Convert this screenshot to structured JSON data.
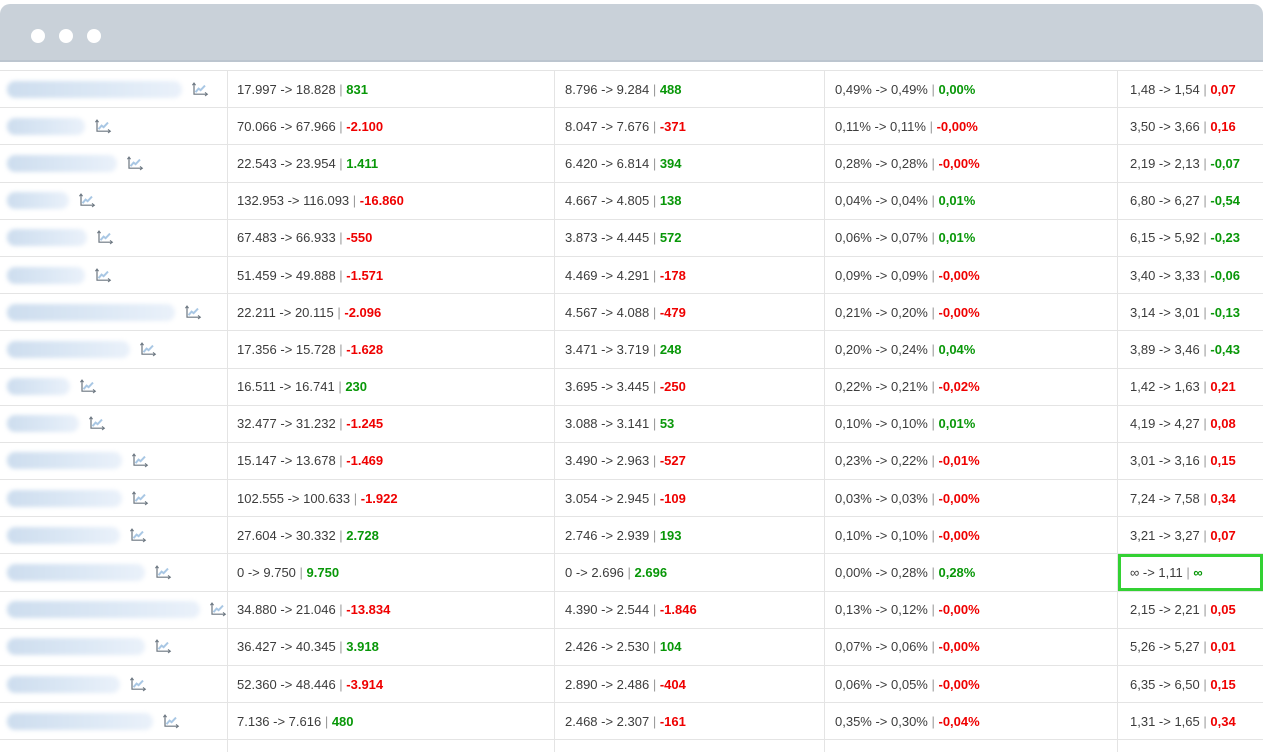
{
  "window": {
    "dots": [
      "window-dot-1",
      "window-dot-2",
      "window-dot-3"
    ]
  },
  "colors": {
    "positive": "#089708",
    "negative": "#ef0000",
    "selection": "#33d133",
    "titlebar": "#c9d1d9",
    "titlebar_edge": "#bcc5cf"
  },
  "icons": {
    "row_icon": "line-chart"
  },
  "table": {
    "arrow": "->",
    "separator": "|",
    "rows": [
      {
        "blur_width": 175,
        "cells": [
          {
            "from": "17.997",
            "to": "18.828",
            "delta": "831",
            "trend": "positive"
          },
          {
            "from": "8.796",
            "to": "9.284",
            "delta": "488",
            "trend": "positive"
          },
          {
            "from": "0,49%",
            "to": "0,49%",
            "delta": "0,00%",
            "trend": "positive"
          },
          {
            "from": "1,48",
            "to": "1,54",
            "delta": "0,07",
            "trend": "negative"
          }
        ]
      },
      {
        "blur_width": 78,
        "cells": [
          {
            "from": "70.066",
            "to": "67.966",
            "delta": "-2.100",
            "trend": "negative"
          },
          {
            "from": "8.047",
            "to": "7.676",
            "delta": "-371",
            "trend": "negative"
          },
          {
            "from": "0,11%",
            "to": "0,11%",
            "delta": "-0,00%",
            "trend": "negative"
          },
          {
            "from": "3,50",
            "to": "3,66",
            "delta": "0,16",
            "trend": "negative"
          }
        ]
      },
      {
        "blur_width": 110,
        "cells": [
          {
            "from": "22.543",
            "to": "23.954",
            "delta": "1.411",
            "trend": "positive"
          },
          {
            "from": "6.420",
            "to": "6.814",
            "delta": "394",
            "trend": "positive"
          },
          {
            "from": "0,28%",
            "to": "0,28%",
            "delta": "-0,00%",
            "trend": "negative"
          },
          {
            "from": "2,19",
            "to": "2,13",
            "delta": "-0,07",
            "trend": "positive"
          }
        ]
      },
      {
        "blur_width": 62,
        "cells": [
          {
            "from": "132.953",
            "to": "116.093",
            "delta": "-16.860",
            "trend": "negative"
          },
          {
            "from": "4.667",
            "to": "4.805",
            "delta": "138",
            "trend": "positive"
          },
          {
            "from": "0,04%",
            "to": "0,04%",
            "delta": "0,01%",
            "trend": "positive"
          },
          {
            "from": "6,80",
            "to": "6,27",
            "delta": "-0,54",
            "trend": "positive"
          }
        ]
      },
      {
        "blur_width": 80,
        "cells": [
          {
            "from": "67.483",
            "to": "66.933",
            "delta": "-550",
            "trend": "negative"
          },
          {
            "from": "3.873",
            "to": "4.445",
            "delta": "572",
            "trend": "positive"
          },
          {
            "from": "0,06%",
            "to": "0,07%",
            "delta": "0,01%",
            "trend": "positive"
          },
          {
            "from": "6,15",
            "to": "5,92",
            "delta": "-0,23",
            "trend": "positive"
          }
        ]
      },
      {
        "blur_width": 78,
        "cells": [
          {
            "from": "51.459",
            "to": "49.888",
            "delta": "-1.571",
            "trend": "negative"
          },
          {
            "from": "4.469",
            "to": "4.291",
            "delta": "-178",
            "trend": "negative"
          },
          {
            "from": "0,09%",
            "to": "0,09%",
            "delta": "-0,00%",
            "trend": "negative"
          },
          {
            "from": "3,40",
            "to": "3,33",
            "delta": "-0,06",
            "trend": "positive"
          }
        ]
      },
      {
        "blur_width": 168,
        "cells": [
          {
            "from": "22.211",
            "to": "20.115",
            "delta": "-2.096",
            "trend": "negative"
          },
          {
            "from": "4.567",
            "to": "4.088",
            "delta": "-479",
            "trend": "negative"
          },
          {
            "from": "0,21%",
            "to": "0,20%",
            "delta": "-0,00%",
            "trend": "negative"
          },
          {
            "from": "3,14",
            "to": "3,01",
            "delta": "-0,13",
            "trend": "positive"
          }
        ]
      },
      {
        "blur_width": 123,
        "cells": [
          {
            "from": "17.356",
            "to": "15.728",
            "delta": "-1.628",
            "trend": "negative"
          },
          {
            "from": "3.471",
            "to": "3.719",
            "delta": "248",
            "trend": "positive"
          },
          {
            "from": "0,20%",
            "to": "0,24%",
            "delta": "0,04%",
            "trend": "positive"
          },
          {
            "from": "3,89",
            "to": "3,46",
            "delta": "-0,43",
            "trend": "positive"
          }
        ]
      },
      {
        "blur_width": 63,
        "cells": [
          {
            "from": "16.511",
            "to": "16.741",
            "delta": "230",
            "trend": "positive"
          },
          {
            "from": "3.695",
            "to": "3.445",
            "delta": "-250",
            "trend": "negative"
          },
          {
            "from": "0,22%",
            "to": "0,21%",
            "delta": "-0,02%",
            "trend": "negative"
          },
          {
            "from": "1,42",
            "to": "1,63",
            "delta": "0,21",
            "trend": "negative"
          }
        ]
      },
      {
        "blur_width": 72,
        "cells": [
          {
            "from": "32.477",
            "to": "31.232",
            "delta": "-1.245",
            "trend": "negative"
          },
          {
            "from": "3.088",
            "to": "3.141",
            "delta": "53",
            "trend": "positive"
          },
          {
            "from": "0,10%",
            "to": "0,10%",
            "delta": "0,01%",
            "trend": "positive"
          },
          {
            "from": "4,19",
            "to": "4,27",
            "delta": "0,08",
            "trend": "negative"
          }
        ]
      },
      {
        "blur_width": 115,
        "cells": [
          {
            "from": "15.147",
            "to": "13.678",
            "delta": "-1.469",
            "trend": "negative"
          },
          {
            "from": "3.490",
            "to": "2.963",
            "delta": "-527",
            "trend": "negative"
          },
          {
            "from": "0,23%",
            "to": "0,22%",
            "delta": "-0,01%",
            "trend": "negative"
          },
          {
            "from": "3,01",
            "to": "3,16",
            "delta": "0,15",
            "trend": "negative"
          }
        ]
      },
      {
        "blur_width": 115,
        "cells": [
          {
            "from": "102.555",
            "to": "100.633",
            "delta": "-1.922",
            "trend": "negative"
          },
          {
            "from": "3.054",
            "to": "2.945",
            "delta": "-109",
            "trend": "negative"
          },
          {
            "from": "0,03%",
            "to": "0,03%",
            "delta": "-0,00%",
            "trend": "negative"
          },
          {
            "from": "7,24",
            "to": "7,58",
            "delta": "0,34",
            "trend": "negative"
          }
        ]
      },
      {
        "blur_width": 113,
        "cells": [
          {
            "from": "27.604",
            "to": "30.332",
            "delta": "2.728",
            "trend": "positive"
          },
          {
            "from": "2.746",
            "to": "2.939",
            "delta": "193",
            "trend": "positive"
          },
          {
            "from": "0,10%",
            "to": "0,10%",
            "delta": "-0,00%",
            "trend": "negative"
          },
          {
            "from": "3,21",
            "to": "3,27",
            "delta": "0,07",
            "trend": "negative"
          }
        ]
      },
      {
        "blur_width": 138,
        "cells": [
          {
            "from": "0",
            "to": "9.750",
            "delta": "9.750",
            "trend": "positive"
          },
          {
            "from": "0",
            "to": "2.696",
            "delta": "2.696",
            "trend": "positive"
          },
          {
            "from": "0,00%",
            "to": "0,28%",
            "delta": "0,28%",
            "trend": "positive"
          },
          {
            "from": "∞",
            "to": "1,11",
            "delta": "∞",
            "trend": "positive",
            "selected": true
          }
        ]
      },
      {
        "blur_width": 193,
        "cells": [
          {
            "from": "34.880",
            "to": "21.046",
            "delta": "-13.834",
            "trend": "negative"
          },
          {
            "from": "4.390",
            "to": "2.544",
            "delta": "-1.846",
            "trend": "negative"
          },
          {
            "from": "0,13%",
            "to": "0,12%",
            "delta": "-0,00%",
            "trend": "negative"
          },
          {
            "from": "2,15",
            "to": "2,21",
            "delta": "0,05",
            "trend": "negative"
          }
        ]
      },
      {
        "blur_width": 138,
        "cells": [
          {
            "from": "36.427",
            "to": "40.345",
            "delta": "3.918",
            "trend": "positive"
          },
          {
            "from": "2.426",
            "to": "2.530",
            "delta": "104",
            "trend": "positive"
          },
          {
            "from": "0,07%",
            "to": "0,06%",
            "delta": "-0,00%",
            "trend": "negative"
          },
          {
            "from": "5,26",
            "to": "5,27",
            "delta": "0,01",
            "trend": "negative"
          }
        ]
      },
      {
        "blur_width": 113,
        "cells": [
          {
            "from": "52.360",
            "to": "48.446",
            "delta": "-3.914",
            "trend": "negative"
          },
          {
            "from": "2.890",
            "to": "2.486",
            "delta": "-404",
            "trend": "negative"
          },
          {
            "from": "0,06%",
            "to": "0,05%",
            "delta": "-0,00%",
            "trend": "negative"
          },
          {
            "from": "6,35",
            "to": "6,50",
            "delta": "0,15",
            "trend": "negative"
          }
        ]
      },
      {
        "blur_width": 146,
        "cells": [
          {
            "from": "7.136",
            "to": "7.616",
            "delta": "480",
            "trend": "positive"
          },
          {
            "from": "2.468",
            "to": "2.307",
            "delta": "-161",
            "trend": "negative"
          },
          {
            "from": "0,35%",
            "to": "0,30%",
            "delta": "-0,04%",
            "trend": "negative"
          },
          {
            "from": "1,31",
            "to": "1,65",
            "delta": "0,34",
            "trend": "negative"
          }
        ]
      }
    ]
  }
}
